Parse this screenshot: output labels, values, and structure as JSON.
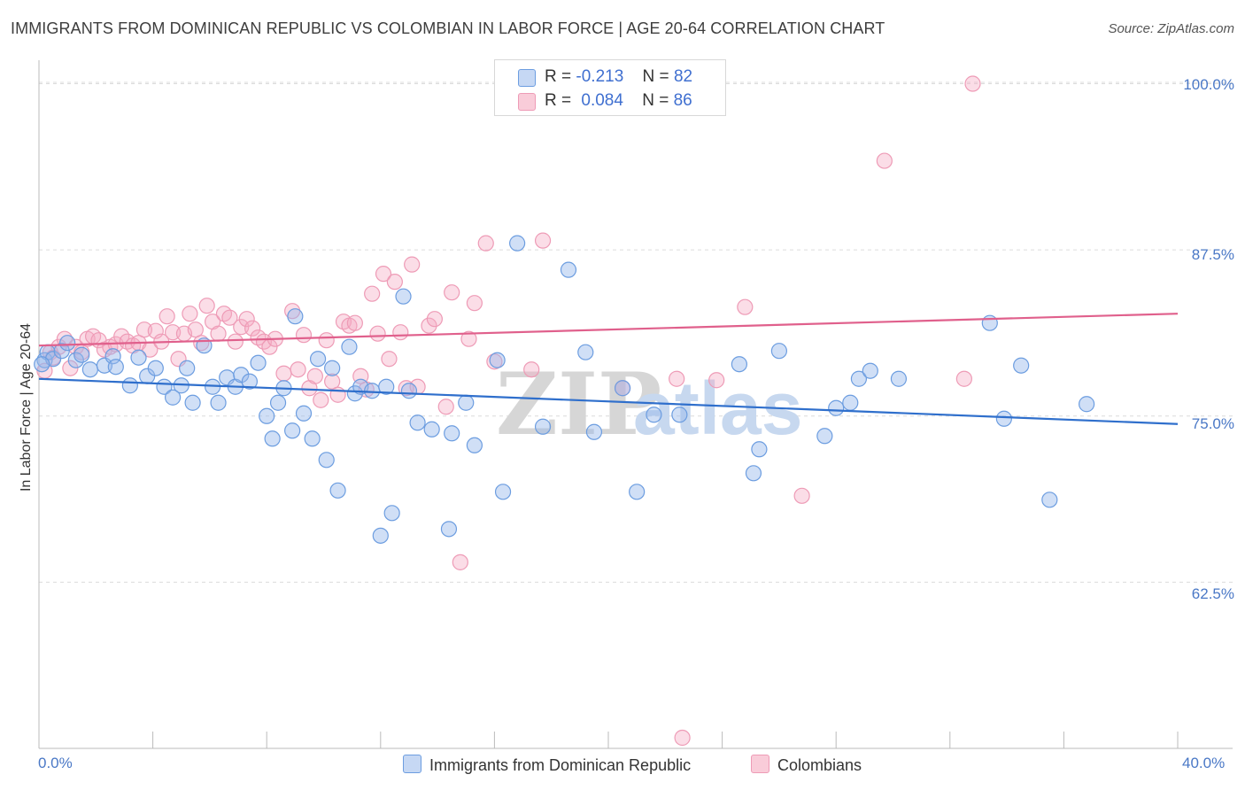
{
  "header": {
    "title": "IMMIGRANTS FROM DOMINICAN REPUBLIC VS COLOMBIAN IN LABOR FORCE | AGE 20-64 CORRELATION CHART",
    "source": "Source: ZipAtlas.com"
  },
  "watermark": {
    "zip": "ZIP",
    "atlas": "atlas"
  },
  "legend": {
    "blue": {
      "r_label": "R =",
      "r_value": "-0.213",
      "n_label": "N =",
      "n_value": "82"
    },
    "pink": {
      "r_label": "R =",
      "r_value": "0.084",
      "n_label": "N =",
      "n_value": "86"
    }
  },
  "chart_data": {
    "type": "scatter",
    "title": "IMMIGRANTS FROM DOMINICAN REPUBLIC VS COLOMBIAN IN LABOR FORCE | AGE 20-64 CORRELATION CHART",
    "ylabel": "In Labor Force | Age 20-64",
    "xlabel": "",
    "xlim": [
      0,
      40
    ],
    "ylim": [
      50,
      101.5
    ],
    "x_tick_labels": [
      "0.0%",
      "40.0%"
    ],
    "y_ticks": [
      62.5,
      75.0,
      87.5,
      100.0
    ],
    "y_tick_labels": [
      "62.5%",
      "75.0%",
      "87.5%",
      "100.0%"
    ],
    "grid": true,
    "legend_position": "top-center",
    "colors": {
      "blue": "#6c9de0",
      "pink": "#ee9bb6",
      "blue_line": "#2f6fcc",
      "pink_line": "#e0608c"
    },
    "series": [
      {
        "name": "Immigrants from Dominican Republic",
        "color": "#6c9de0",
        "trend": [
          [
            0,
            77.8
          ],
          [
            40,
            74.4
          ]
        ],
        "points": [
          [
            0.2,
            79.2
          ],
          [
            0.3,
            79.8
          ],
          [
            0.5,
            79.3
          ],
          [
            0.8,
            79.9
          ],
          [
            1.0,
            80.5
          ],
          [
            1.3,
            79.2
          ],
          [
            1.5,
            79.6
          ],
          [
            1.8,
            78.5
          ],
          [
            2.3,
            78.8
          ],
          [
            2.6,
            79.5
          ],
          [
            2.7,
            78.7
          ],
          [
            3.2,
            77.3
          ],
          [
            3.5,
            79.4
          ],
          [
            3.8,
            78.0
          ],
          [
            4.1,
            78.6
          ],
          [
            4.4,
            77.2
          ],
          [
            4.7,
            76.4
          ],
          [
            5.0,
            77.3
          ],
          [
            5.2,
            78.6
          ],
          [
            5.4,
            76.0
          ],
          [
            5.8,
            80.3
          ],
          [
            6.1,
            77.2
          ],
          [
            6.3,
            76.0
          ],
          [
            6.6,
            77.9
          ],
          [
            6.9,
            77.2
          ],
          [
            7.1,
            78.1
          ],
          [
            7.4,
            77.6
          ],
          [
            7.7,
            79.0
          ],
          [
            8.0,
            75.0
          ],
          [
            8.2,
            73.3
          ],
          [
            8.4,
            76.0
          ],
          [
            8.6,
            77.1
          ],
          [
            8.9,
            73.9
          ],
          [
            9.0,
            82.5
          ],
          [
            9.3,
            75.2
          ],
          [
            9.6,
            73.3
          ],
          [
            9.8,
            79.3
          ],
          [
            10.1,
            71.7
          ],
          [
            10.3,
            78.6
          ],
          [
            10.5,
            69.4
          ],
          [
            10.9,
            80.2
          ],
          [
            11.1,
            76.7
          ],
          [
            11.3,
            77.2
          ],
          [
            11.7,
            76.9
          ],
          [
            12.0,
            66.0
          ],
          [
            12.2,
            77.2
          ],
          [
            12.4,
            67.7
          ],
          [
            12.8,
            84.0
          ],
          [
            13.0,
            76.9
          ],
          [
            13.3,
            74.5
          ],
          [
            13.8,
            74.0
          ],
          [
            14.4,
            66.5
          ],
          [
            14.5,
            73.7
          ],
          [
            15.0,
            76.0
          ],
          [
            15.3,
            72.8
          ],
          [
            16.1,
            79.2
          ],
          [
            16.3,
            69.3
          ],
          [
            16.8,
            88.0
          ],
          [
            17.7,
            74.2
          ],
          [
            18.6,
            86.0
          ],
          [
            19.2,
            79.8
          ],
          [
            19.5,
            73.8
          ],
          [
            20.5,
            77.1
          ],
          [
            21.0,
            69.3
          ],
          [
            21.6,
            75.1
          ],
          [
            22.5,
            75.1
          ],
          [
            24.6,
            78.9
          ],
          [
            25.1,
            70.7
          ],
          [
            25.3,
            72.5
          ],
          [
            26.0,
            79.9
          ],
          [
            27.6,
            73.5
          ],
          [
            28.0,
            75.6
          ],
          [
            28.5,
            76.0
          ],
          [
            28.8,
            77.8
          ],
          [
            29.2,
            78.4
          ],
          [
            30.2,
            77.8
          ],
          [
            33.4,
            82.0
          ],
          [
            33.9,
            74.8
          ],
          [
            34.5,
            78.8
          ],
          [
            35.5,
            68.7
          ],
          [
            36.8,
            75.9
          ],
          [
            0.1,
            78.9
          ]
        ]
      },
      {
        "name": "Colombians",
        "color": "#ee9bb6",
        "trend": [
          [
            0,
            80.3
          ],
          [
            40,
            82.7
          ]
        ],
        "points": [
          [
            0.2,
            78.4
          ],
          [
            0.4,
            79.8
          ],
          [
            0.5,
            79.4
          ],
          [
            0.7,
            80.2
          ],
          [
            0.9,
            80.8
          ],
          [
            1.1,
            78.6
          ],
          [
            1.3,
            80.2
          ],
          [
            1.5,
            79.8
          ],
          [
            1.7,
            80.8
          ],
          [
            1.9,
            81.0
          ],
          [
            2.1,
            80.7
          ],
          [
            2.3,
            80.0
          ],
          [
            2.5,
            80.2
          ],
          [
            2.7,
            80.4
          ],
          [
            2.9,
            81.0
          ],
          [
            3.1,
            80.6
          ],
          [
            3.3,
            80.3
          ],
          [
            3.5,
            80.5
          ],
          [
            3.7,
            81.5
          ],
          [
            3.9,
            80.0
          ],
          [
            4.1,
            81.4
          ],
          [
            4.3,
            80.6
          ],
          [
            4.5,
            82.5
          ],
          [
            4.7,
            81.3
          ],
          [
            4.9,
            79.3
          ],
          [
            5.1,
            81.2
          ],
          [
            5.3,
            82.7
          ],
          [
            5.5,
            81.5
          ],
          [
            5.7,
            80.5
          ],
          [
            5.9,
            83.3
          ],
          [
            6.1,
            82.1
          ],
          [
            6.3,
            81.2
          ],
          [
            6.5,
            82.7
          ],
          [
            6.7,
            82.4
          ],
          [
            6.9,
            80.6
          ],
          [
            7.1,
            81.7
          ],
          [
            7.3,
            82.3
          ],
          [
            7.5,
            81.6
          ],
          [
            7.7,
            80.9
          ],
          [
            7.9,
            80.6
          ],
          [
            8.1,
            80.2
          ],
          [
            8.3,
            80.8
          ],
          [
            8.6,
            78.2
          ],
          [
            8.9,
            82.9
          ],
          [
            9.1,
            78.5
          ],
          [
            9.3,
            81.1
          ],
          [
            9.5,
            77.1
          ],
          [
            9.7,
            78.0
          ],
          [
            9.9,
            76.2
          ],
          [
            10.1,
            80.7
          ],
          [
            10.3,
            77.6
          ],
          [
            10.5,
            76.6
          ],
          [
            10.7,
            82.1
          ],
          [
            10.9,
            81.8
          ],
          [
            11.1,
            82.0
          ],
          [
            11.3,
            78.0
          ],
          [
            11.5,
            77.0
          ],
          [
            11.7,
            84.2
          ],
          [
            11.9,
            81.2
          ],
          [
            12.1,
            85.7
          ],
          [
            12.3,
            79.3
          ],
          [
            12.5,
            85.1
          ],
          [
            12.7,
            81.3
          ],
          [
            12.9,
            77.1
          ],
          [
            13.1,
            86.4
          ],
          [
            13.3,
            77.2
          ],
          [
            13.7,
            81.8
          ],
          [
            13.9,
            82.3
          ],
          [
            14.3,
            75.7
          ],
          [
            14.5,
            84.3
          ],
          [
            15.1,
            80.8
          ],
          [
            15.3,
            83.5
          ],
          [
            15.7,
            88.0
          ],
          [
            16.0,
            79.1
          ],
          [
            17.3,
            78.5
          ],
          [
            17.7,
            88.2
          ],
          [
            20.5,
            77.1
          ],
          [
            22.4,
            77.8
          ],
          [
            22.6,
            50.8
          ],
          [
            23.8,
            77.7
          ],
          [
            24.8,
            83.2
          ],
          [
            26.8,
            69.0
          ],
          [
            29.7,
            94.2
          ],
          [
            32.5,
            77.8
          ],
          [
            32.8,
            100.0
          ],
          [
            14.8,
            64.0
          ]
        ]
      }
    ]
  },
  "bottom_legend": {
    "blue_label": "Immigrants from Dominican Republic",
    "pink_label": "Colombians"
  }
}
